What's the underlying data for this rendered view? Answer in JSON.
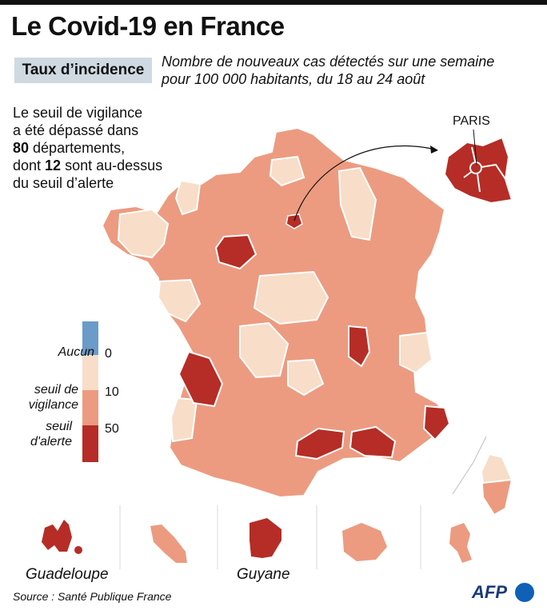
{
  "header": {
    "title": "Le Covid-19 en France",
    "tag": "Taux d’incidence",
    "subtitle_line1": "Nombre de nouveaux cas détectés sur une semaine",
    "subtitle_line2": "pour 100 000 habitants, du 18 au 24 août"
  },
  "note": {
    "line1": "Le seuil de vigilance",
    "line2": "a été dépassé dans",
    "count_vigilance": "80",
    "line3_rest": " départements,",
    "line4_pre": "dont ",
    "count_alerte": "12",
    "line4_post": " sont au-dessus",
    "line5": "du seuil d’alerte"
  },
  "legend": {
    "items": [
      {
        "label": "Aucun",
        "color": "#6b9bc8"
      },
      {
        "label": "",
        "color": "#f8ddc8"
      },
      {
        "label": "seuil de vigilance",
        "color": "#ec9b80"
      },
      {
        "label": "seuil d'alerte",
        "color": "#b52d26"
      }
    ],
    "label_aucun": "Aucun",
    "label_vigilance_1": "seuil de",
    "label_vigilance_2": "vigilance",
    "label_alerte_1": "seuil",
    "label_alerte_2": "d'alerte",
    "thresholds": [
      "0",
      "10",
      "50"
    ]
  },
  "colors": {
    "none": "#6b9bc8",
    "low": "#f8ddc8",
    "vigilance": "#ec9b80",
    "alerte": "#b52d26"
  },
  "inset": {
    "paris_label": "PARIS"
  },
  "territories": {
    "guadeloupe": "Guadeloupe",
    "guyane": "Guyane"
  },
  "footer": {
    "source": "Source : Santé Publique France",
    "logo": "AFP"
  }
}
